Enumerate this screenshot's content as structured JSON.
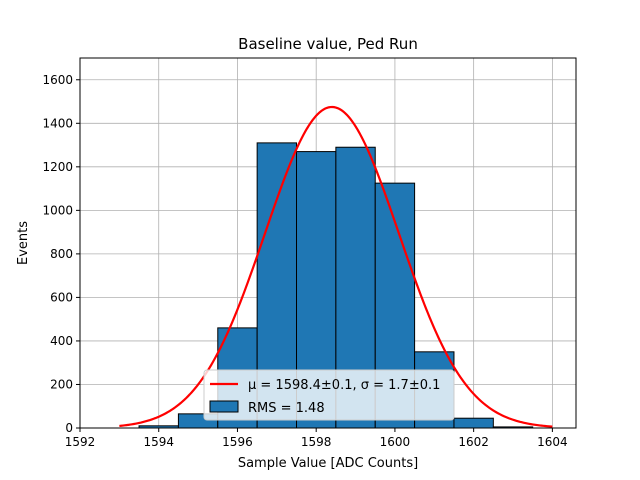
{
  "chart_data": {
    "type": "bar",
    "title": "Baseline value, Ped Run",
    "xlabel": "Sample Value [ADC Counts]",
    "ylabel": "Events",
    "xlim": [
      1592,
      1604.6
    ],
    "ylim": [
      0,
      1700
    ],
    "xticks": [
      1592,
      1594,
      1596,
      1598,
      1600,
      1602,
      1604
    ],
    "yticks": [
      0,
      200,
      400,
      600,
      800,
      1000,
      1200,
      1400,
      1600
    ],
    "grid": true,
    "legend_position": "lower-center",
    "histogram": {
      "name": "RMS = 1.48",
      "color": "#1f77b4",
      "edge_color": "#000000",
      "bins": [
        {
          "x0": 1593.5,
          "x1": 1594.5,
          "count": 10
        },
        {
          "x0": 1594.5,
          "x1": 1595.5,
          "count": 65
        },
        {
          "x0": 1595.5,
          "x1": 1596.5,
          "count": 460
        },
        {
          "x0": 1596.5,
          "x1": 1597.5,
          "count": 1310
        },
        {
          "x0": 1597.5,
          "x1": 1598.5,
          "count": 1270
        },
        {
          "x0": 1598.5,
          "x1": 1599.5,
          "count": 1290
        },
        {
          "x0": 1599.5,
          "x1": 1600.5,
          "count": 1125
        },
        {
          "x0": 1600.5,
          "x1": 1601.5,
          "count": 350
        },
        {
          "x0": 1601.5,
          "x1": 1602.5,
          "count": 45
        },
        {
          "x0": 1602.5,
          "x1": 1603.5,
          "count": 5
        }
      ]
    },
    "fit": {
      "name": "μ = 1598.4±0.1, σ = 1.7±0.1",
      "color": "#ff0000",
      "amplitude": 1475,
      "mu": 1598.4,
      "sigma": 1.7,
      "x_range": [
        1593,
        1604
      ]
    }
  }
}
